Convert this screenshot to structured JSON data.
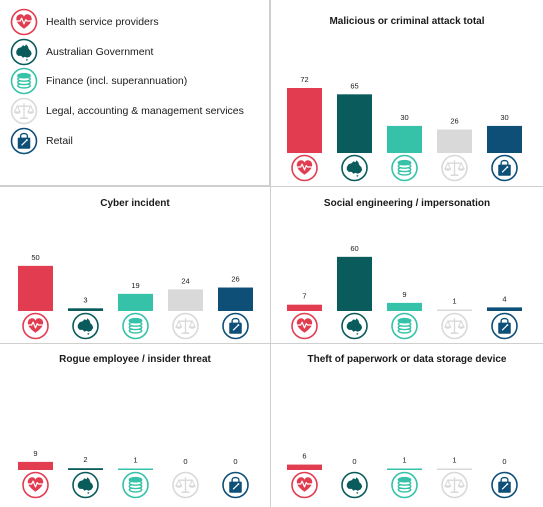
{
  "categories": [
    {
      "key": "health",
      "label": "Health service providers",
      "color": "#e23c50",
      "icon": "heart-pulse-icon"
    },
    {
      "key": "gov",
      "label": "Australian Government",
      "color": "#0a5c5c",
      "icon": "australia-map-icon"
    },
    {
      "key": "finance",
      "label": "Finance (incl. superannuation)",
      "color": "#36c2a8",
      "icon": "coin-stack-icon"
    },
    {
      "key": "legal",
      "label": "Legal, accounting & management services",
      "color": "#d9d9d9",
      "icon": "scales-icon"
    },
    {
      "key": "retail",
      "label": "Retail",
      "color": "#0e4f78",
      "icon": "shopping-bag-icon"
    }
  ],
  "chart_data": [
    {
      "type": "bar",
      "title": "Malicious or criminal attack total",
      "categories": [
        "Health service providers",
        "Australian Government",
        "Finance (incl. superannuation)",
        "Legal, accounting & management services",
        "Retail"
      ],
      "values": [
        72,
        65,
        30,
        26,
        30
      ]
    },
    {
      "type": "bar",
      "title": "Cyber incident",
      "categories": [
        "Health service providers",
        "Australian Government",
        "Finance (incl. superannuation)",
        "Legal, accounting & management services",
        "Retail"
      ],
      "values": [
        50,
        3,
        19,
        24,
        26
      ]
    },
    {
      "type": "bar",
      "title": "Social engineering / impersonation",
      "categories": [
        "Health service providers",
        "Australian Government",
        "Finance (incl. superannuation)",
        "Legal, accounting & management services",
        "Retail"
      ],
      "values": [
        7,
        60,
        9,
        1,
        4
      ]
    },
    {
      "type": "bar",
      "title": "Rogue employee / insider threat",
      "categories": [
        "Health service providers",
        "Australian Government",
        "Finance (incl. superannuation)",
        "Legal, accounting & management services",
        "Retail"
      ],
      "values": [
        9,
        2,
        1,
        0,
        0
      ]
    },
    {
      "type": "bar",
      "title": "Theft of paperwork or data storage device",
      "categories": [
        "Health service providers",
        "Australian Government",
        "Finance (incl. superannuation)",
        "Legal, accounting & management services",
        "Retail"
      ],
      "values": [
        6,
        0,
        1,
        1,
        0
      ]
    }
  ]
}
